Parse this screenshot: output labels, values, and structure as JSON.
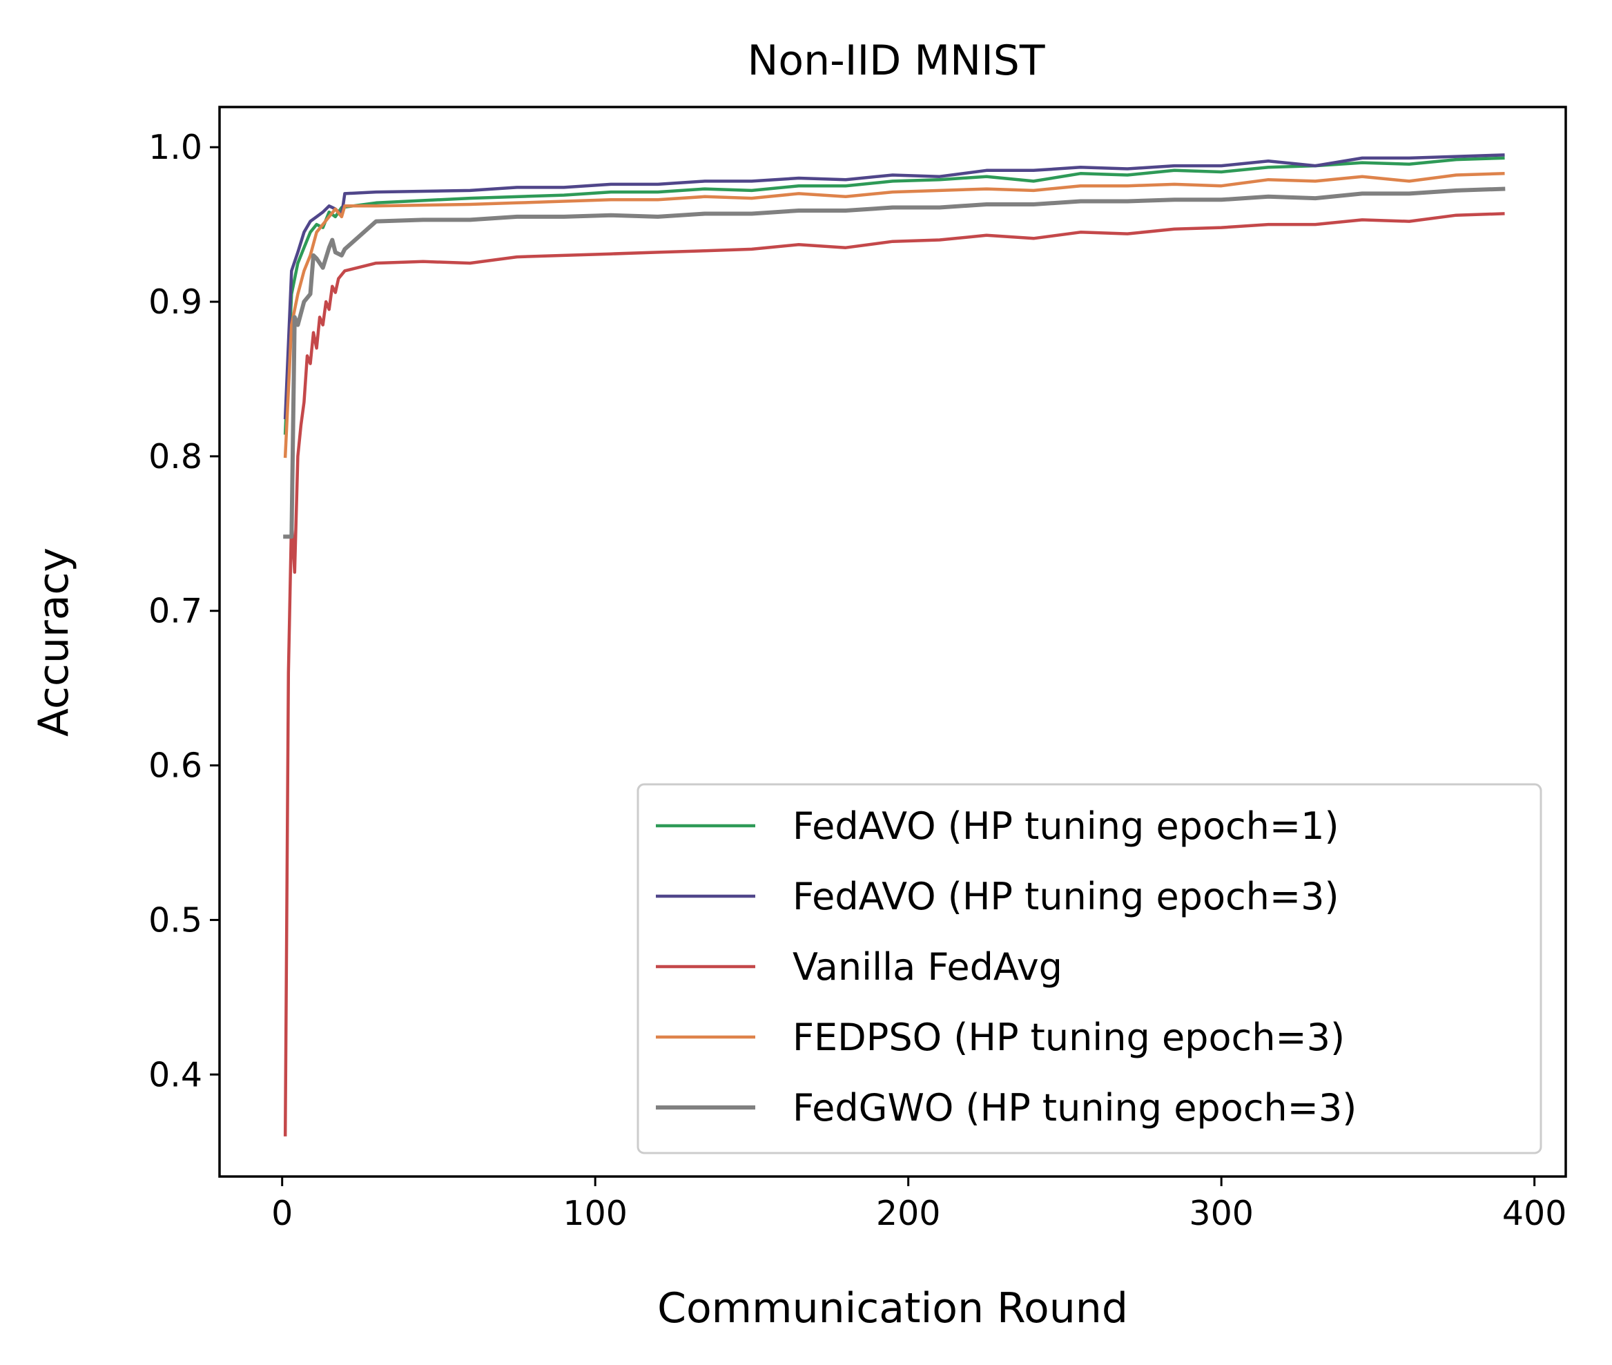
{
  "chart_data": {
    "type": "line",
    "title": "Non-IID MNIST",
    "xlabel": "Communication Round",
    "ylabel": "Accuracy",
    "xlim": [
      -20,
      410
    ],
    "ylim": [
      0.334,
      1.026
    ],
    "xticks": [
      0,
      100,
      200,
      300,
      400
    ],
    "xtick_labels": [
      "0",
      "100",
      "200",
      "300",
      "400"
    ],
    "yticks": [
      0.4,
      0.5,
      0.6,
      0.7,
      0.8,
      0.9,
      1.0
    ],
    "ytick_labels": [
      "0.4",
      "0.5",
      "0.6",
      "0.7",
      "0.8",
      "0.9",
      "1.0"
    ],
    "grid": false,
    "legend_position": "lower right",
    "series": [
      {
        "name": "FedAVO (HP tuning epoch=1)",
        "color": "#2e9a57",
        "points": [
          [
            1,
            0.815
          ],
          [
            3,
            0.905
          ],
          [
            5,
            0.925
          ],
          [
            7,
            0.935
          ],
          [
            9,
            0.945
          ],
          [
            11,
            0.95
          ],
          [
            13,
            0.948
          ],
          [
            15,
            0.958
          ],
          [
            17,
            0.955
          ],
          [
            19,
            0.961
          ],
          [
            30,
            0.964
          ],
          [
            60,
            0.967
          ],
          [
            90,
            0.969
          ],
          [
            105,
            0.971
          ],
          [
            120,
            0.971
          ],
          [
            135,
            0.973
          ],
          [
            150,
            0.972
          ],
          [
            165,
            0.975
          ],
          [
            180,
            0.975
          ],
          [
            195,
            0.978
          ],
          [
            210,
            0.979
          ],
          [
            225,
            0.981
          ],
          [
            240,
            0.978
          ],
          [
            255,
            0.983
          ],
          [
            270,
            0.982
          ],
          [
            285,
            0.985
          ],
          [
            300,
            0.984
          ],
          [
            315,
            0.987
          ],
          [
            330,
            0.988
          ],
          [
            345,
            0.99
          ],
          [
            360,
            0.989
          ],
          [
            375,
            0.992
          ],
          [
            390,
            0.993
          ]
        ]
      },
      {
        "name": "FedAVO (HP tuning epoch=3)",
        "color": "#50468a",
        "points": [
          [
            1,
            0.825
          ],
          [
            3,
            0.92
          ],
          [
            5,
            0.932
          ],
          [
            7,
            0.945
          ],
          [
            9,
            0.952
          ],
          [
            11,
            0.955
          ],
          [
            13,
            0.958
          ],
          [
            15,
            0.962
          ],
          [
            17,
            0.96
          ],
          [
            19,
            0.956
          ],
          [
            20,
            0.97
          ],
          [
            30,
            0.971
          ],
          [
            60,
            0.972
          ],
          [
            75,
            0.974
          ],
          [
            90,
            0.974
          ],
          [
            105,
            0.976
          ],
          [
            120,
            0.976
          ],
          [
            135,
            0.978
          ],
          [
            150,
            0.978
          ],
          [
            165,
            0.98
          ],
          [
            180,
            0.979
          ],
          [
            195,
            0.982
          ],
          [
            210,
            0.981
          ],
          [
            225,
            0.985
          ],
          [
            240,
            0.985
          ],
          [
            255,
            0.987
          ],
          [
            270,
            0.986
          ],
          [
            285,
            0.988
          ],
          [
            300,
            0.988
          ],
          [
            315,
            0.991
          ],
          [
            330,
            0.988
          ],
          [
            345,
            0.993
          ],
          [
            360,
            0.993
          ],
          [
            390,
            0.995
          ]
        ]
      },
      {
        "name": "Vanilla FedAvg",
        "color": "#c4484a",
        "points": [
          [
            1,
            0.361
          ],
          [
            2,
            0.66
          ],
          [
            3,
            0.76
          ],
          [
            4,
            0.725
          ],
          [
            5,
            0.8
          ],
          [
            6,
            0.82
          ],
          [
            7,
            0.835
          ],
          [
            8,
            0.865
          ],
          [
            9,
            0.86
          ],
          [
            10,
            0.88
          ],
          [
            11,
            0.87
          ],
          [
            12,
            0.89
          ],
          [
            13,
            0.885
          ],
          [
            14,
            0.9
          ],
          [
            15,
            0.895
          ],
          [
            16,
            0.91
          ],
          [
            17,
            0.906
          ],
          [
            18,
            0.915
          ],
          [
            20,
            0.92
          ],
          [
            30,
            0.925
          ],
          [
            45,
            0.926
          ],
          [
            60,
            0.925
          ],
          [
            75,
            0.929
          ],
          [
            90,
            0.93
          ],
          [
            105,
            0.931
          ],
          [
            120,
            0.932
          ],
          [
            135,
            0.933
          ],
          [
            150,
            0.934
          ],
          [
            165,
            0.937
          ],
          [
            180,
            0.935
          ],
          [
            195,
            0.939
          ],
          [
            210,
            0.94
          ],
          [
            225,
            0.943
          ],
          [
            240,
            0.941
          ],
          [
            255,
            0.945
          ],
          [
            270,
            0.944
          ],
          [
            285,
            0.947
          ],
          [
            300,
            0.948
          ],
          [
            315,
            0.95
          ],
          [
            330,
            0.95
          ],
          [
            345,
            0.953
          ],
          [
            360,
            0.952
          ],
          [
            375,
            0.956
          ],
          [
            390,
            0.957
          ]
        ]
      },
      {
        "name": "FEDPSO (HP tuning epoch=3)",
        "color": "#de834b",
        "points": [
          [
            1,
            0.8
          ],
          [
            3,
            0.885
          ],
          [
            5,
            0.905
          ],
          [
            7,
            0.92
          ],
          [
            9,
            0.93
          ],
          [
            11,
            0.945
          ],
          [
            13,
            0.95
          ],
          [
            15,
            0.955
          ],
          [
            17,
            0.96
          ],
          [
            19,
            0.955
          ],
          [
            20,
            0.962
          ],
          [
            30,
            0.962
          ],
          [
            60,
            0.963
          ],
          [
            75,
            0.964
          ],
          [
            90,
            0.965
          ],
          [
            105,
            0.966
          ],
          [
            120,
            0.966
          ],
          [
            135,
            0.968
          ],
          [
            150,
            0.967
          ],
          [
            165,
            0.97
          ],
          [
            180,
            0.968
          ],
          [
            195,
            0.971
          ],
          [
            210,
            0.972
          ],
          [
            225,
            0.973
          ],
          [
            240,
            0.972
          ],
          [
            255,
            0.975
          ],
          [
            270,
            0.975
          ],
          [
            285,
            0.976
          ],
          [
            300,
            0.975
          ],
          [
            315,
            0.979
          ],
          [
            330,
            0.978
          ],
          [
            345,
            0.981
          ],
          [
            360,
            0.978
          ],
          [
            375,
            0.982
          ],
          [
            390,
            0.983
          ]
        ]
      },
      {
        "name": "FedGWO (HP tuning epoch=3)",
        "color": "#808080",
        "points": [
          [
            1,
            0.748
          ],
          [
            3,
            0.748
          ],
          [
            4,
            0.89
          ],
          [
            5,
            0.885
          ],
          [
            7,
            0.9
          ],
          [
            9,
            0.905
          ],
          [
            10,
            0.93
          ],
          [
            11,
            0.928
          ],
          [
            13,
            0.922
          ],
          [
            15,
            0.935
          ],
          [
            16,
            0.94
          ],
          [
            17,
            0.932
          ],
          [
            19,
            0.93
          ],
          [
            20,
            0.934
          ],
          [
            30,
            0.952
          ],
          [
            45,
            0.953
          ],
          [
            60,
            0.953
          ],
          [
            75,
            0.955
          ],
          [
            90,
            0.955
          ],
          [
            105,
            0.956
          ],
          [
            120,
            0.955
          ],
          [
            135,
            0.957
          ],
          [
            150,
            0.957
          ],
          [
            165,
            0.959
          ],
          [
            180,
            0.959
          ],
          [
            195,
            0.961
          ],
          [
            210,
            0.961
          ],
          [
            225,
            0.963
          ],
          [
            240,
            0.963
          ],
          [
            255,
            0.965
          ],
          [
            270,
            0.965
          ],
          [
            285,
            0.966
          ],
          [
            300,
            0.966
          ],
          [
            315,
            0.968
          ],
          [
            330,
            0.967
          ],
          [
            345,
            0.97
          ],
          [
            360,
            0.97
          ],
          [
            375,
            0.972
          ],
          [
            390,
            0.973
          ]
        ]
      }
    ]
  }
}
